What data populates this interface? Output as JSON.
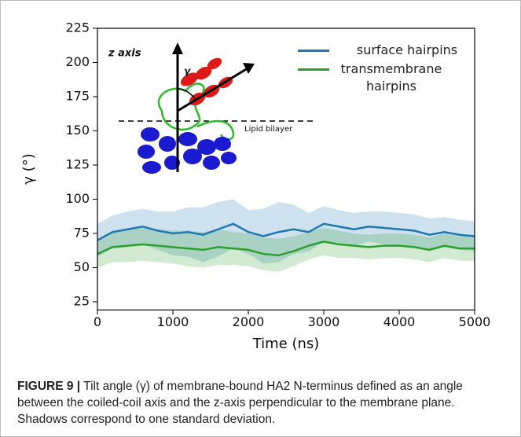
{
  "chart_data": {
    "type": "line",
    "x": [
      0,
      200,
      400,
      600,
      800,
      1000,
      1200,
      1400,
      1600,
      1800,
      2000,
      2200,
      2400,
      2600,
      2800,
      3000,
      3200,
      3400,
      3600,
      3800,
      4000,
      4200,
      4400,
      4600,
      4800,
      5000
    ],
    "series": [
      {
        "name": "surface hairpins",
        "color": "#1f77b4",
        "values": [
          70,
          76,
          78,
          80,
          77,
          75,
          76,
          74,
          78,
          82,
          76,
          73,
          76,
          78,
          76,
          82,
          80,
          78,
          80,
          79,
          78,
          77,
          74,
          76,
          74,
          73
        ],
        "std": [
          12,
          12,
          13,
          13,
          14,
          16,
          18,
          20,
          20,
          18,
          16,
          20,
          22,
          18,
          14,
          13,
          12,
          12,
          11,
          12,
          12,
          12,
          12,
          11,
          11,
          11
        ]
      },
      {
        "name": "transmembrane hairpins",
        "color": "#2ca02c",
        "values": [
          60,
          65,
          66,
          67,
          66,
          65,
          64,
          63,
          65,
          64,
          63,
          60,
          59,
          62,
          66,
          69,
          67,
          66,
          65,
          66,
          66,
          65,
          63,
          66,
          64,
          64
        ],
        "std": [
          10,
          11,
          12,
          12,
          12,
          12,
          13,
          13,
          13,
          12,
          12,
          12,
          12,
          11,
          10,
          10,
          10,
          9,
          9,
          9,
          9,
          9,
          9,
          9,
          9,
          9
        ]
      }
    ],
    "xlabel": "Time (ns)",
    "ylabel": "γ (°)",
    "xlim": [
      0,
      5000
    ],
    "ylim": [
      19,
      225
    ],
    "xticks": [
      0,
      1000,
      2000,
      3000,
      4000,
      5000
    ],
    "yticks": [
      25,
      50,
      75,
      100,
      125,
      150,
      175,
      200,
      225
    ],
    "legend": "upper right",
    "annotations": [
      "z axis",
      "γ",
      "Lipid bilayer"
    ]
  },
  "caption": {
    "label": "FIGURE 9 |",
    "text": "Tilt angle (γ) of membrane-bound HA2 N-terminus defined as an angle between the coiled-coil axis and the z-axis perpendicular to the membrane plane. Shadows correspond to one standard deviation."
  }
}
